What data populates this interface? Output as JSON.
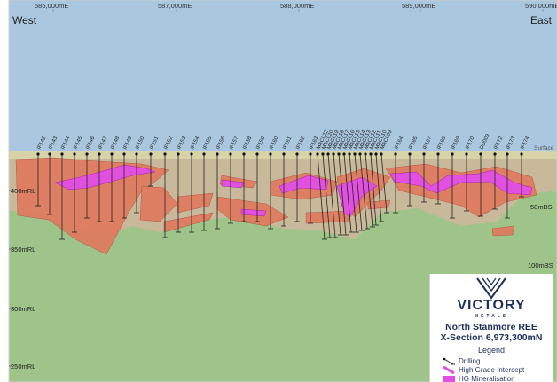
{
  "labels": {
    "west": "West",
    "east": "East",
    "surface": "Surface"
  },
  "easting_ticks": [
    "586,000mE",
    "587,000mE",
    "588,000mE",
    "589,000mE",
    "590,000mE"
  ],
  "rl_ticks": [
    "400mRL",
    "350mRL",
    "300mRL",
    "250mRL"
  ],
  "bs_ticks": [
    "50mBS",
    "100mBS"
  ],
  "drill_holes": [
    "IF142",
    "IF143",
    "IF144",
    "IF145",
    "IF146",
    "IF147",
    "IF148",
    "IF149",
    "IF150",
    "IF151",
    "IF152",
    "IF153",
    "IF154",
    "IF155",
    "IF156",
    "IF157",
    "IF158",
    "IF159",
    "IF160",
    "IF161",
    "IF162",
    "IF163",
    "MAC022",
    "MAC020",
    "MAC019",
    "MAC018",
    "MAC017",
    "MAC016",
    "MAC015",
    "MAC014",
    "MAC013",
    "MAC012",
    "MAC011",
    "MAC010",
    "MAC009",
    "IF164",
    "IF165",
    "IF167",
    "IF168",
    "IF169",
    "IF170",
    "DD009",
    "IF172",
    "IF173",
    "IF174"
  ],
  "legend": {
    "brand_name": "VICTORY",
    "brand_sub": "METALS",
    "title_line1": "North Stanmore REE",
    "title_line2": "X-Section 6,973,300mN",
    "heading": "Legend",
    "items": [
      {
        "label": "Drilling",
        "icon": "drill-line-icon"
      },
      {
        "label": "High Grade Intercept",
        "icon": "high-grade-icon"
      },
      {
        "label": "HG Mineralisation",
        "icon": "hg-mineralisation-icon"
      }
    ]
  },
  "colors": {
    "sky": "#a9c7de",
    "ground": "#9ec48a",
    "weathered": "#c9b99b",
    "mineralisation": "#e07a5f",
    "high_grade": "#e24ee6",
    "brand": "#1f2f5a"
  }
}
